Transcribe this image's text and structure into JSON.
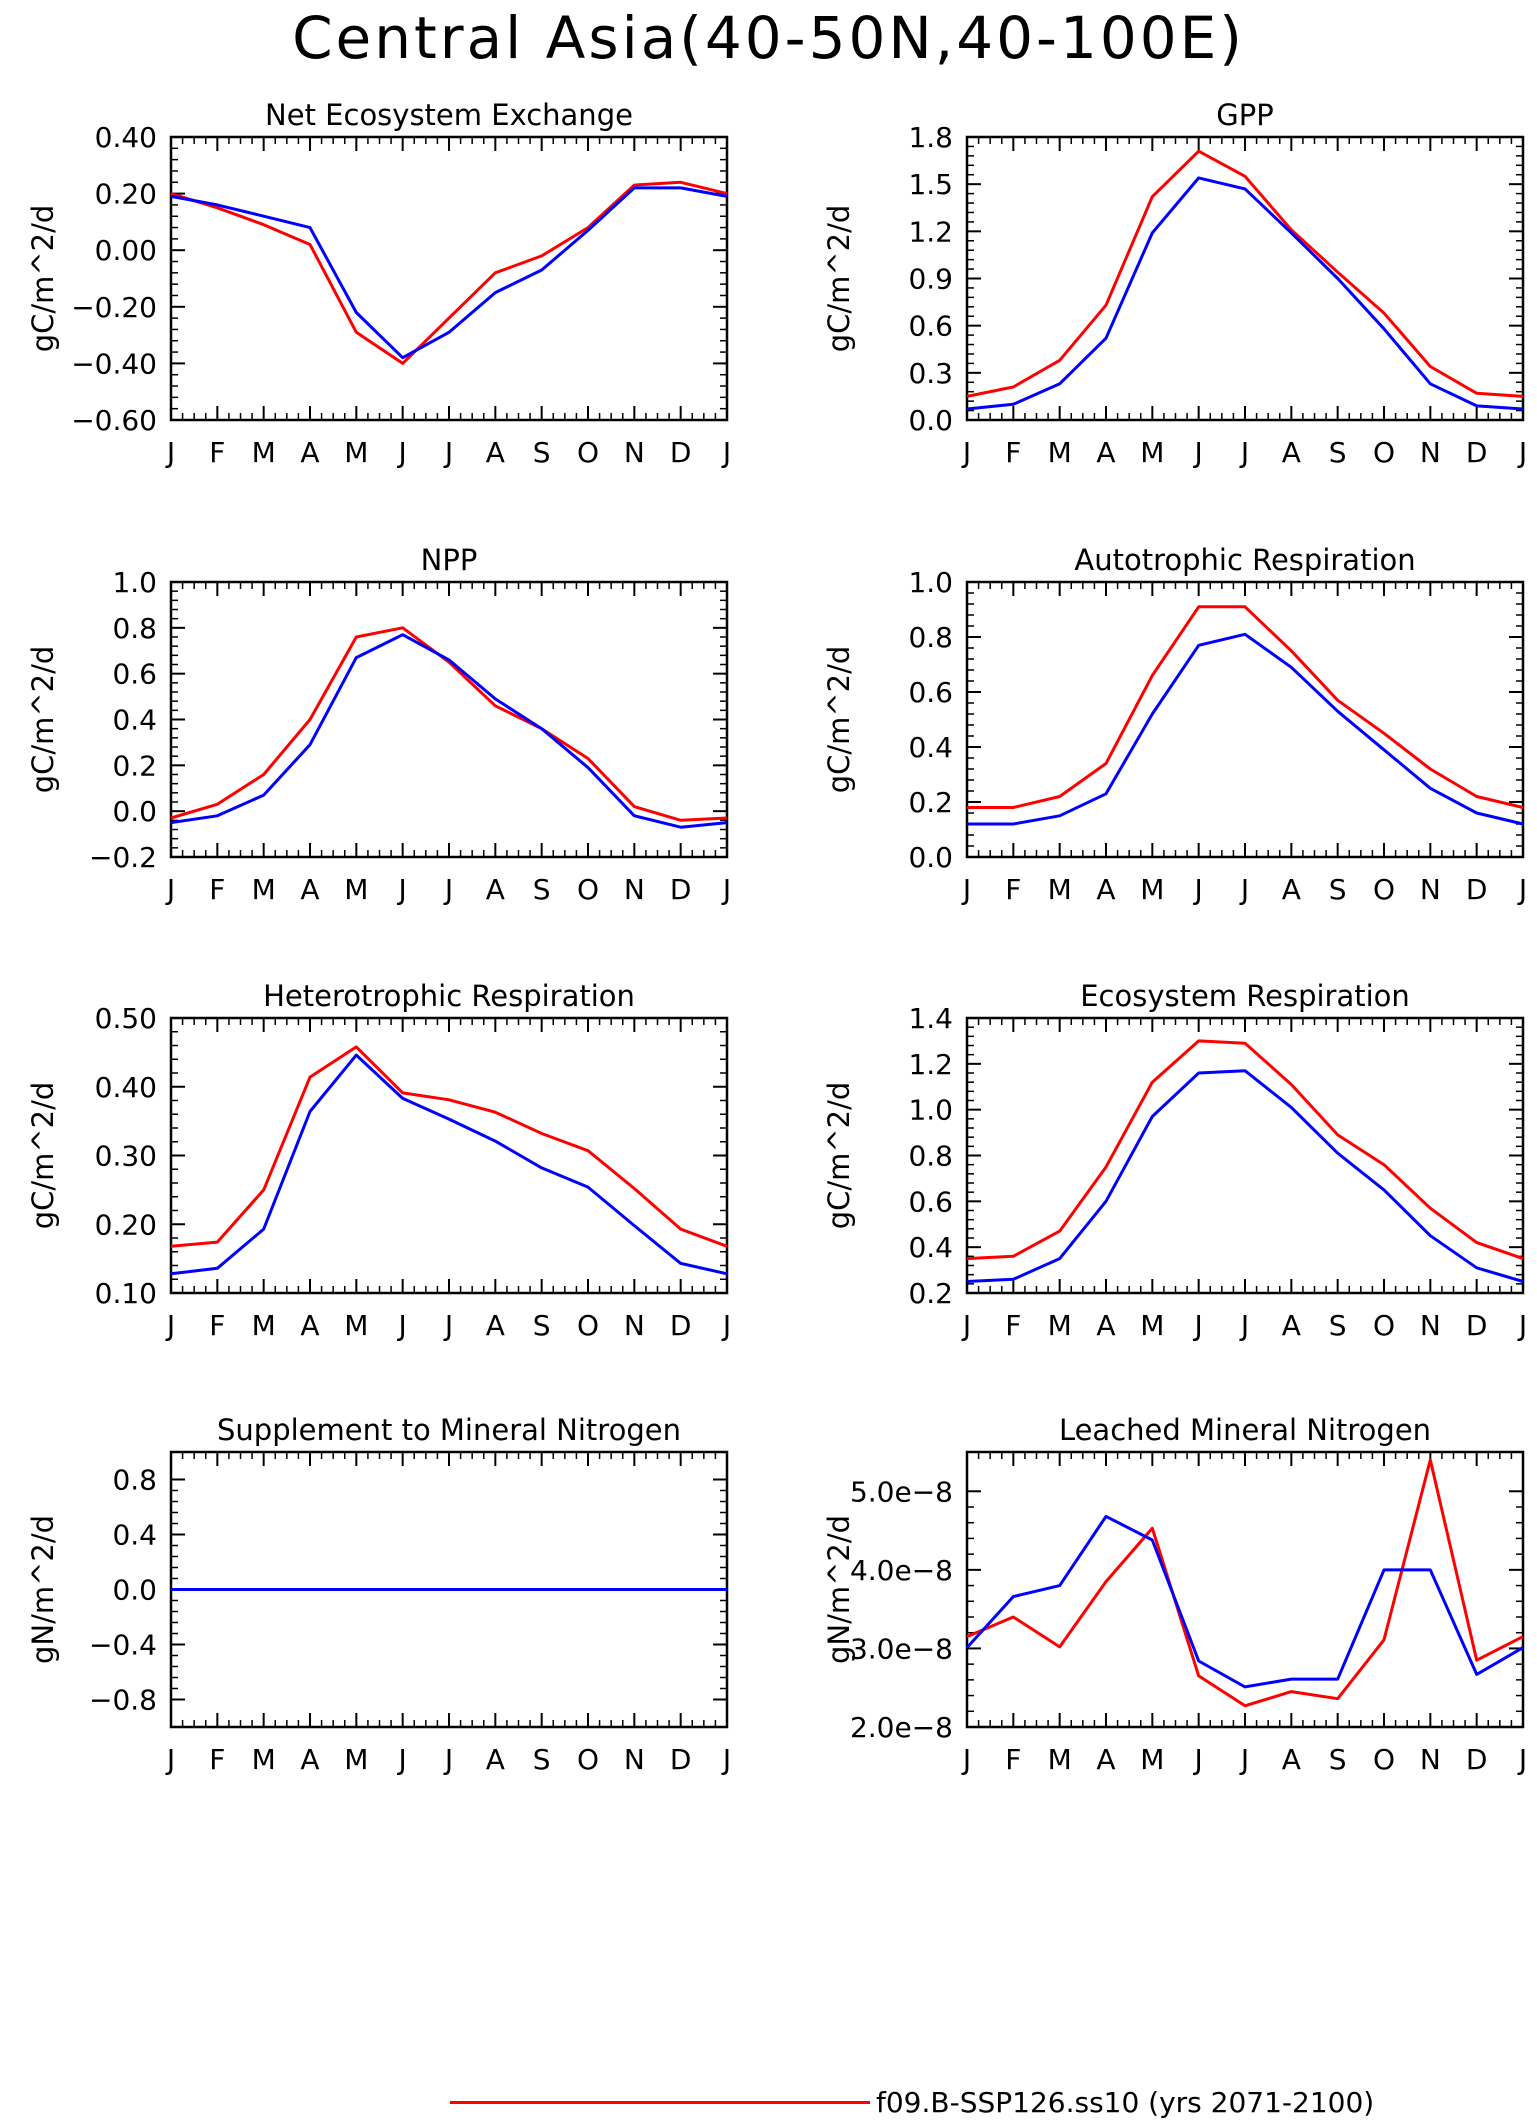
{
  "title": "Central Asia(40-50N,40-100E)",
  "legend": {
    "label": "f09.B-SSP126.ss10 (yrs 2071-2100)",
    "color": "#ff0000"
  },
  "series_colors": {
    "red": "#ff0000",
    "blue": "#0000ff"
  },
  "months": [
    "J",
    "F",
    "M",
    "A",
    "M",
    "J",
    "J",
    "A",
    "S",
    "O",
    "N",
    "D",
    "J"
  ],
  "chart_data": [
    {
      "type": "line",
      "title": "Net Ecosystem Exchange",
      "ylabel": "gC/m^2/d",
      "ylim": [
        -0.6,
        0.4
      ],
      "yticks": [
        -0.6,
        -0.4,
        -0.2,
        0.0,
        0.2,
        0.4
      ],
      "yticklabels": [
        "−0.60",
        "−0.40",
        "−0.20",
        "0.00",
        "0.20",
        "0.40"
      ],
      "x": [
        "J",
        "F",
        "M",
        "A",
        "M",
        "J",
        "J",
        "A",
        "S",
        "O",
        "N",
        "D",
        "J"
      ],
      "series": [
        {
          "color": "#ff0000",
          "values": [
            0.2,
            0.15,
            0.09,
            0.02,
            -0.29,
            -0.4,
            -0.24,
            -0.08,
            -0.02,
            0.08,
            0.23,
            0.24,
            0.2
          ]
        },
        {
          "color": "#0000ff",
          "values": [
            0.19,
            0.16,
            0.12,
            0.08,
            -0.22,
            -0.38,
            -0.29,
            -0.15,
            -0.07,
            0.07,
            0.22,
            0.22,
            0.19
          ]
        }
      ]
    },
    {
      "type": "line",
      "title": "GPP",
      "ylabel": "gC/m^2/d",
      "ylim": [
        0.0,
        1.8
      ],
      "yticks": [
        0.0,
        0.3,
        0.6,
        0.9,
        1.2,
        1.5,
        1.8
      ],
      "yticklabels": [
        "0.0",
        "0.3",
        "0.6",
        "0.9",
        "1.2",
        "1.5",
        "1.8"
      ],
      "x": [
        "J",
        "F",
        "M",
        "A",
        "M",
        "J",
        "J",
        "A",
        "S",
        "O",
        "N",
        "D",
        "J"
      ],
      "series": [
        {
          "color": "#ff0000",
          "values": [
            0.15,
            0.21,
            0.38,
            0.73,
            1.42,
            1.71,
            1.55,
            1.21,
            0.94,
            0.68,
            0.34,
            0.17,
            0.15
          ]
        },
        {
          "color": "#0000ff",
          "values": [
            0.07,
            0.1,
            0.23,
            0.52,
            1.19,
            1.54,
            1.47,
            1.19,
            0.9,
            0.58,
            0.23,
            0.09,
            0.07
          ]
        }
      ]
    },
    {
      "type": "line",
      "title": "NPP",
      "ylabel": "gC/m^2/d",
      "ylim": [
        -0.2,
        1.0
      ],
      "yticks": [
        -0.2,
        0.0,
        0.2,
        0.4,
        0.6,
        0.8,
        1.0
      ],
      "yticklabels": [
        "−0.2",
        "0.0",
        "0.2",
        "0.4",
        "0.6",
        "0.8",
        "1.0"
      ],
      "x": [
        "J",
        "F",
        "M",
        "A",
        "M",
        "J",
        "J",
        "A",
        "S",
        "O",
        "N",
        "D",
        "J"
      ],
      "series": [
        {
          "color": "#ff0000",
          "values": [
            -0.03,
            0.03,
            0.16,
            0.4,
            0.76,
            0.8,
            0.65,
            0.46,
            0.36,
            0.23,
            0.02,
            -0.04,
            -0.03
          ]
        },
        {
          "color": "#0000ff",
          "values": [
            -0.05,
            -0.02,
            0.07,
            0.29,
            0.67,
            0.77,
            0.66,
            0.49,
            0.36,
            0.19,
            -0.02,
            -0.07,
            -0.05
          ]
        }
      ]
    },
    {
      "type": "line",
      "title": "Autotrophic Respiration",
      "ylabel": "gC/m^2/d",
      "ylim": [
        0.0,
        1.0
      ],
      "yticks": [
        0.0,
        0.2,
        0.4,
        0.6,
        0.8,
        1.0
      ],
      "yticklabels": [
        "0.0",
        "0.2",
        "0.4",
        "0.6",
        "0.8",
        "1.0"
      ],
      "x": [
        "J",
        "F",
        "M",
        "A",
        "M",
        "J",
        "J",
        "A",
        "S",
        "O",
        "N",
        "D",
        "J"
      ],
      "series": [
        {
          "color": "#ff0000",
          "values": [
            0.18,
            0.18,
            0.22,
            0.34,
            0.66,
            0.91,
            0.91,
            0.75,
            0.57,
            0.45,
            0.32,
            0.22,
            0.18
          ]
        },
        {
          "color": "#0000ff",
          "values": [
            0.12,
            0.12,
            0.15,
            0.23,
            0.52,
            0.77,
            0.81,
            0.69,
            0.53,
            0.39,
            0.25,
            0.16,
            0.12
          ]
        }
      ]
    },
    {
      "type": "line",
      "title": "Heterotrophic Respiration",
      "ylabel": "gC/m^2/d",
      "ylim": [
        0.1,
        0.5
      ],
      "yticks": [
        0.1,
        0.2,
        0.3,
        0.4,
        0.5
      ],
      "yticklabels": [
        "0.10",
        "0.20",
        "0.30",
        "0.40",
        "0.50"
      ],
      "x": [
        "J",
        "F",
        "M",
        "A",
        "M",
        "J",
        "J",
        "A",
        "S",
        "O",
        "N",
        "D",
        "J"
      ],
      "series": [
        {
          "color": "#ff0000",
          "values": [
            0.168,
            0.174,
            0.25,
            0.414,
            0.458,
            0.391,
            0.381,
            0.363,
            0.332,
            0.307,
            0.252,
            0.193,
            0.168
          ]
        },
        {
          "color": "#0000ff",
          "values": [
            0.128,
            0.136,
            0.193,
            0.364,
            0.446,
            0.383,
            0.353,
            0.321,
            0.282,
            0.254,
            0.198,
            0.143,
            0.128
          ]
        }
      ]
    },
    {
      "type": "line",
      "title": "Ecosystem Respiration",
      "ylabel": "gC/m^2/d",
      "ylim": [
        0.2,
        1.4
      ],
      "yticks": [
        0.2,
        0.4,
        0.6,
        0.8,
        1.0,
        1.2,
        1.4
      ],
      "yticklabels": [
        "0.2",
        "0.4",
        "0.6",
        "0.8",
        "1.0",
        "1.2",
        "1.4"
      ],
      "x": [
        "J",
        "F",
        "M",
        "A",
        "M",
        "J",
        "J",
        "A",
        "S",
        "O",
        "N",
        "D",
        "J"
      ],
      "series": [
        {
          "color": "#ff0000",
          "values": [
            0.35,
            0.36,
            0.47,
            0.75,
            1.12,
            1.3,
            1.29,
            1.11,
            0.89,
            0.76,
            0.57,
            0.42,
            0.35
          ]
        },
        {
          "color": "#0000ff",
          "values": [
            0.25,
            0.26,
            0.35,
            0.6,
            0.97,
            1.16,
            1.17,
            1.01,
            0.81,
            0.65,
            0.45,
            0.31,
            0.25
          ]
        }
      ]
    },
    {
      "type": "line",
      "title": "Supplement to Mineral Nitrogen",
      "ylabel": "gN/m^2/d",
      "ylim": [
        -1.0,
        1.0
      ],
      "yticks": [
        -0.8,
        -0.4,
        0.0,
        0.4,
        0.8
      ],
      "yticklabels": [
        "−0.8",
        "−0.4",
        "0.0",
        "0.4",
        "0.8"
      ],
      "x": [
        "J",
        "F",
        "M",
        "A",
        "M",
        "J",
        "J",
        "A",
        "S",
        "O",
        "N",
        "D",
        "J"
      ],
      "series": [
        {
          "color": "#ff0000",
          "values": [
            0,
            0,
            0,
            0,
            0,
            0,
            0,
            0,
            0,
            0,
            0,
            0,
            0
          ]
        },
        {
          "color": "#0000ff",
          "values": [
            0,
            0,
            0,
            0,
            0,
            0,
            0,
            0,
            0,
            0,
            0,
            0,
            0
          ]
        }
      ]
    },
    {
      "type": "line",
      "title": "Leached Mineral Nitrogen",
      "ylabel": "gN/m^2/d",
      "ylim": [
        2e-08,
        5.5e-08
      ],
      "yticks": [
        2e-08,
        3e-08,
        4e-08,
        5e-08
      ],
      "yticklabels": [
        "2.0e−8",
        "3.0e−8",
        "4.0e−8",
        "5.0e−8"
      ],
      "x": [
        "J",
        "F",
        "M",
        "A",
        "M",
        "J",
        "J",
        "A",
        "S",
        "O",
        "N",
        "D",
        "J"
      ],
      "series": [
        {
          "color": "#ff0000",
          "values": [
            3.15e-08,
            3.4e-08,
            3.02e-08,
            3.85e-08,
            4.53e-08,
            2.65e-08,
            2.27e-08,
            2.45e-08,
            2.36e-08,
            3.11e-08,
            5.4e-08,
            2.85e-08,
            3.15e-08
          ]
        },
        {
          "color": "#0000ff",
          "values": [
            3.01e-08,
            3.66e-08,
            3.8e-08,
            4.68e-08,
            4.38e-08,
            2.84e-08,
            2.51e-08,
            2.61e-08,
            2.61e-08,
            4e-08,
            4e-08,
            2.67e-08,
            3.01e-08
          ]
        }
      ]
    }
  ]
}
